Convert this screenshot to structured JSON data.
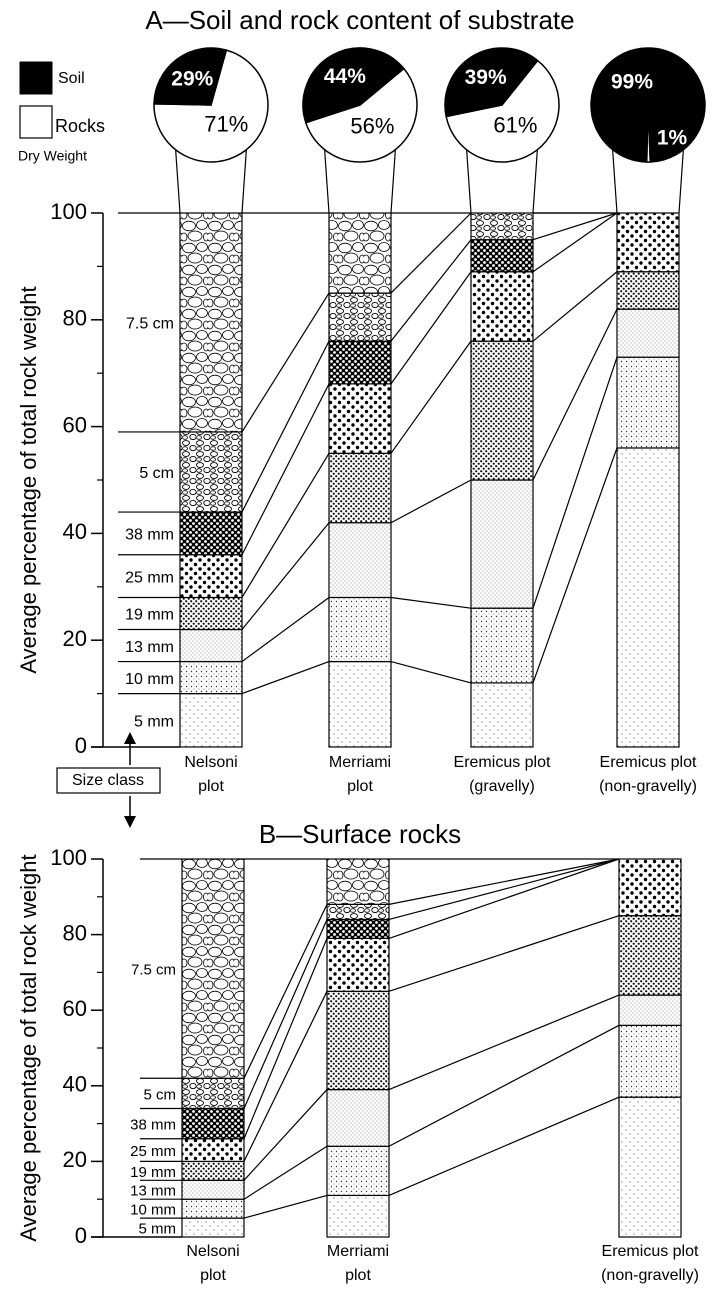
{
  "chart_data": [
    {
      "type": "bar",
      "stacked": true,
      "title": "A—Soil and rock content of substrate",
      "y_label": "Average percentage of total rock weight",
      "annotation": "Size class",
      "categories": [
        [
          "Nelsoni",
          "plot"
        ],
        [
          "Merriami",
          "plot"
        ],
        [
          "Eremicus plot",
          "(gravelly)"
        ],
        [
          "Eremicus plot",
          "(non-gravelly)"
        ]
      ],
      "series": [
        {
          "name": "5 mm",
          "values": [
            10,
            16,
            12,
            56
          ]
        },
        {
          "name": "10 mm",
          "values": [
            6,
            12,
            14,
            17
          ]
        },
        {
          "name": "13 mm",
          "values": [
            6,
            14,
            24,
            9
          ]
        },
        {
          "name": "19 mm",
          "values": [
            6,
            13,
            26,
            7
          ]
        },
        {
          "name": "25 mm",
          "values": [
            8,
            13,
            13,
            11
          ]
        },
        {
          "name": "38 mm",
          "values": [
            8,
            8,
            6,
            0
          ]
        },
        {
          "name": "5 cm",
          "values": [
            15,
            9,
            5,
            0
          ]
        },
        {
          "name": "7.5 cm",
          "values": [
            41,
            15,
            0,
            0
          ]
        }
      ],
      "ylim": [
        0,
        100
      ],
      "yticks": [
        0,
        20,
        40,
        60,
        80,
        100
      ],
      "pies": {
        "series_names": [
          "Soil",
          "Rocks"
        ],
        "colors": [
          "#000000",
          "#ffffff"
        ],
        "note": "Dry Weight",
        "values": [
          [
            29,
            71
          ],
          [
            44,
            56
          ],
          [
            39,
            61
          ],
          [
            99,
            1
          ]
        ],
        "value_labels": [
          [
            "29%",
            "71%"
          ],
          [
            "44%",
            "56%"
          ],
          [
            "39%",
            "61%"
          ],
          [
            "99%",
            "1%"
          ]
        ]
      }
    },
    {
      "type": "bar",
      "stacked": true,
      "title": "B—Surface rocks",
      "y_label": "Average percentage of total rock weight",
      "categories": [
        [
          "Nelsoni",
          "plot"
        ],
        [
          "Merriami",
          "plot"
        ],
        [
          "Eremicus plot",
          "(non-gravelly)"
        ]
      ],
      "series": [
        {
          "name": "5 mm",
          "values": [
            5,
            11,
            37
          ]
        },
        {
          "name": "10 mm",
          "values": [
            5,
            13,
            19
          ]
        },
        {
          "name": "13 mm",
          "values": [
            5,
            15,
            8
          ]
        },
        {
          "name": "19 mm",
          "values": [
            5,
            26,
            21
          ]
        },
        {
          "name": "25 mm",
          "values": [
            6,
            14,
            15
          ]
        },
        {
          "name": "38 mm",
          "values": [
            8,
            5,
            0
          ]
        },
        {
          "name": "5 cm",
          "values": [
            8,
            4,
            0
          ]
        },
        {
          "name": "7.5 cm",
          "values": [
            58,
            12,
            0
          ]
        }
      ],
      "ylim": [
        0,
        100
      ],
      "yticks": [
        0,
        20,
        40,
        60,
        80,
        100
      ]
    }
  ]
}
